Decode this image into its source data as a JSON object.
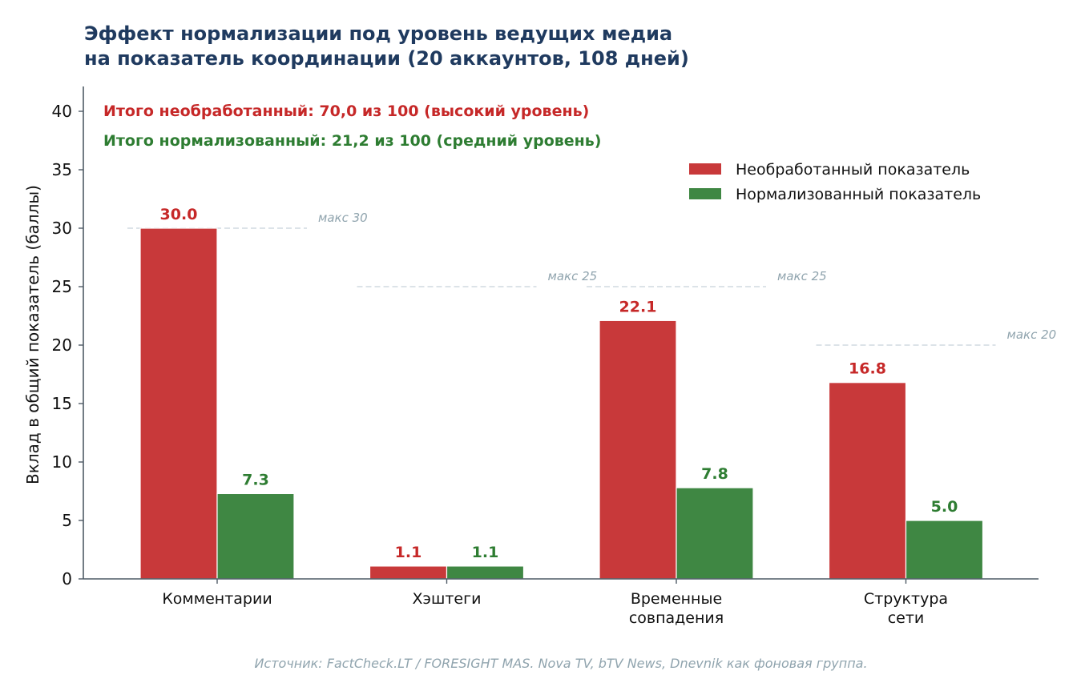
{
  "chart_data": {
    "type": "bar",
    "title_lines": [
      "Эффект нормализации под уровень ведущих медиа",
      "на показатель координации (20 аккаунтов, 108 дней)"
    ],
    "annotations": {
      "total_raw": "Итого необработанный: 70,0 из 100  (высокий уровень)",
      "total_norm": "Итого нормализованный: 21,2 из 100  (средний уровень)"
    },
    "ylabel": "Вклад в общий показатель (баллы)",
    "xlabel": "",
    "ylim": [
      0,
      42
    ],
    "yticks": [
      0,
      5,
      10,
      15,
      20,
      25,
      30,
      35,
      40
    ],
    "grid": false,
    "legend_position": "upper-right",
    "categories": [
      [
        "Комментарии"
      ],
      [
        "Хэштеги"
      ],
      [
        "Временные",
        "совпадения"
      ],
      [
        "Структура",
        "сети"
      ]
    ],
    "series": [
      {
        "name": "Необработанный показатель",
        "color": "#c8393a",
        "label_color": "#c62828",
        "values": [
          30.0,
          1.1,
          22.1,
          16.8
        ],
        "labels": [
          "30.0",
          "1.1",
          "22.1",
          "16.8"
        ]
      },
      {
        "name": "Нормализованный показатель",
        "color": "#3f8743",
        "label_color": "#2e7d32",
        "values": [
          7.3,
          1.1,
          7.8,
          5.0
        ],
        "labels": [
          "7.3",
          "1.1",
          "7.8",
          "5.0"
        ]
      }
    ],
    "max_lines": [
      {
        "value": 30,
        "label": "макс 30"
      },
      {
        "value": 25,
        "label": "макс 25"
      },
      {
        "value": 25,
        "label": "макс 25"
      },
      {
        "value": 20,
        "label": "макс 20"
      }
    ],
    "source": "Источник: FactCheck.LT / FORESIGHT MAS. Nova TV, bTV News, Dnevnik как фоновая группа."
  }
}
